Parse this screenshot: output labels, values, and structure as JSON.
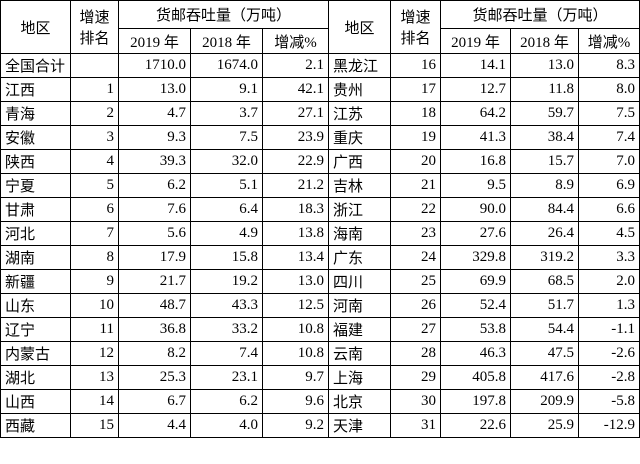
{
  "table": {
    "header": {
      "region": "地区",
      "rank": [
        "增速",
        "排名"
      ],
      "cargo": "货邮吞吐量（万吨）",
      "years": [
        "2019 年",
        "2018 年",
        "增减%"
      ]
    },
    "rows": [
      [
        "全国合计",
        null,
        "1710.0",
        "1674.0",
        "2.1",
        "黑龙江",
        "16",
        "14.1",
        "13.0",
        "8.3"
      ],
      [
        "江西",
        "1",
        "13.0",
        "9.1",
        "42.1",
        "贵州",
        "17",
        "12.7",
        "11.8",
        "8.0"
      ],
      [
        "青海",
        "2",
        "4.7",
        "3.7",
        "27.1",
        "江苏",
        "18",
        "64.2",
        "59.7",
        "7.5"
      ],
      [
        "安徽",
        "3",
        "9.3",
        "7.5",
        "23.9",
        "重庆",
        "19",
        "41.3",
        "38.4",
        "7.4"
      ],
      [
        "陕西",
        "4",
        "39.3",
        "32.0",
        "22.9",
        "广西",
        "20",
        "16.8",
        "15.7",
        "7.0"
      ],
      [
        "宁夏",
        "5",
        "6.2",
        "5.1",
        "21.2",
        "吉林",
        "21",
        "9.5",
        "8.9",
        "6.9"
      ],
      [
        "甘肃",
        "6",
        "7.6",
        "6.4",
        "18.3",
        "浙江",
        "22",
        "90.0",
        "84.4",
        "6.6"
      ],
      [
        "河北",
        "7",
        "5.6",
        "4.9",
        "13.8",
        "海南",
        "23",
        "27.6",
        "26.4",
        "4.5"
      ],
      [
        "湖南",
        "8",
        "17.9",
        "15.8",
        "13.4",
        "广东",
        "24",
        "329.8",
        "319.2",
        "3.3"
      ],
      [
        "新疆",
        "9",
        "21.7",
        "19.2",
        "13.0",
        "四川",
        "25",
        "69.9",
        "68.5",
        "2.0"
      ],
      [
        "山东",
        "10",
        "48.7",
        "43.3",
        "12.5",
        "河南",
        "26",
        "52.4",
        "51.7",
        "1.3"
      ],
      [
        "辽宁",
        "11",
        "36.8",
        "33.2",
        "10.8",
        "福建",
        "27",
        "53.8",
        "54.4",
        "-1.1"
      ],
      [
        "内蒙古",
        "12",
        "8.2",
        "7.4",
        "10.8",
        "云南",
        "28",
        "46.3",
        "47.5",
        "-2.6"
      ],
      [
        "湖北",
        "13",
        "25.3",
        "23.1",
        "9.7",
        "上海",
        "29",
        "405.8",
        "417.6",
        "-2.8"
      ],
      [
        "山西",
        "14",
        "6.7",
        "6.2",
        "9.6",
        "北京",
        "30",
        "197.8",
        "209.9",
        "-5.8"
      ],
      [
        "西藏",
        "15",
        "4.4",
        "4.0",
        "9.2",
        "天津",
        "31",
        "22.6",
        "25.9",
        "-12.9"
      ]
    ]
  }
}
